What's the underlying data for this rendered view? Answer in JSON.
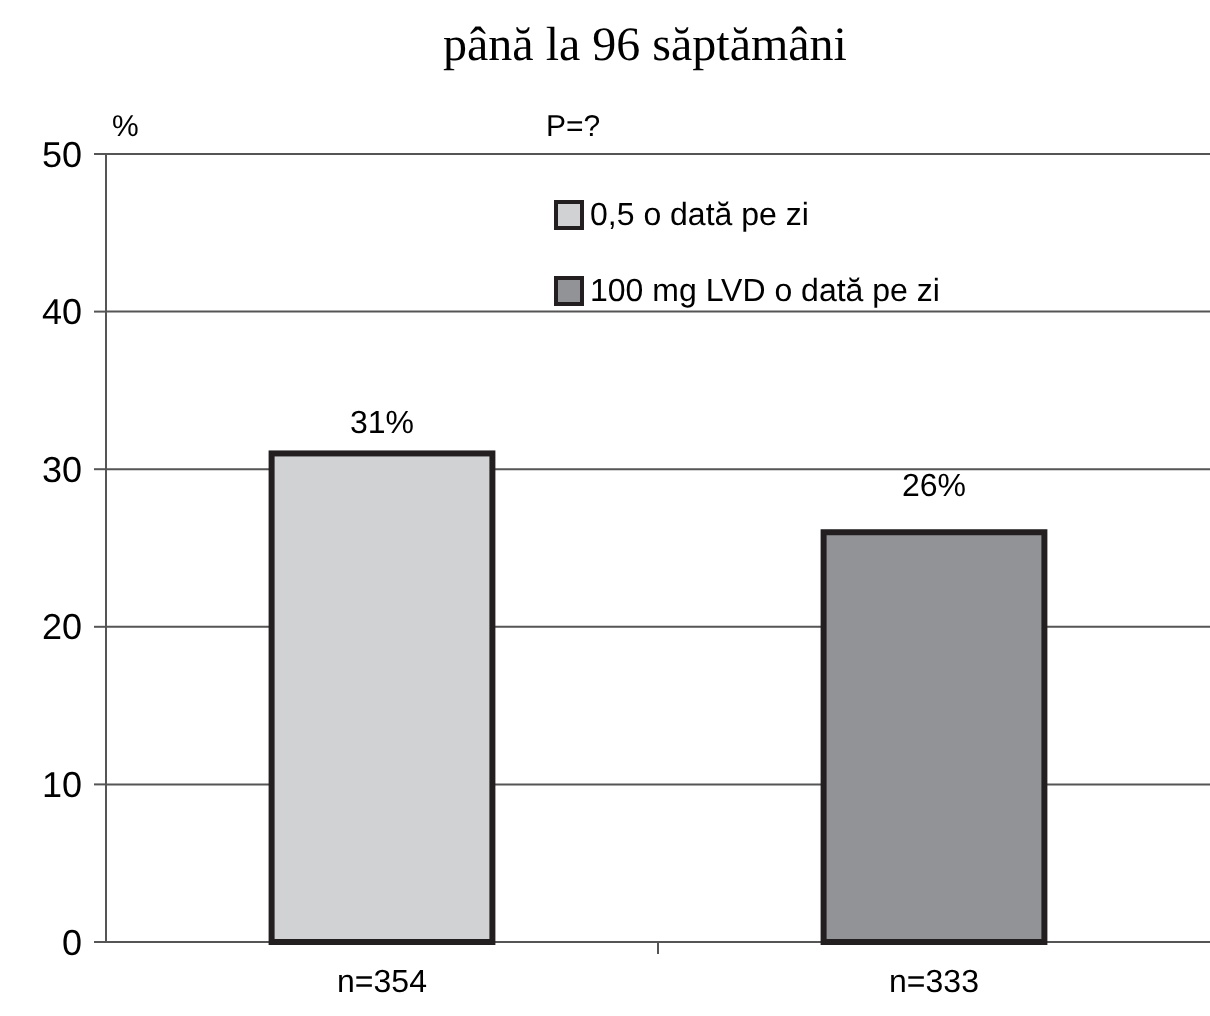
{
  "chart_data": {
    "type": "bar",
    "title": "până la 96 săptămâni",
    "ylabel": "%",
    "annotations": [
      "P=?"
    ],
    "categories": [
      "n=354",
      "n=333"
    ],
    "series": [
      {
        "name": "0,5 o dată pe zi",
        "color": "#d1d2d4",
        "values": [
          31,
          null
        ],
        "value_labels": [
          "31%",
          null
        ]
      },
      {
        "name": "100 mg LVD o dată pe zi",
        "color": "#929397",
        "values": [
          null,
          26
        ],
        "value_labels": [
          null,
          "26%"
        ]
      }
    ],
    "ylim": [
      0,
      50
    ],
    "yticks": [
      0,
      10,
      20,
      30,
      40,
      50
    ],
    "grid": "y",
    "legend": "top right"
  }
}
